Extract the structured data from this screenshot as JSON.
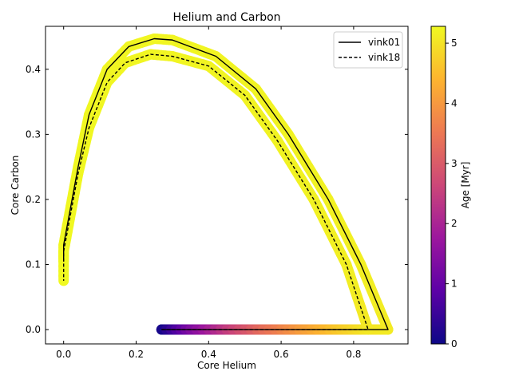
{
  "chart_data": {
    "type": "line",
    "title": "Helium and Carbon",
    "xlabel": "Core Helium",
    "ylabel": "Core Carbon",
    "xlim": [
      -0.05,
      0.95
    ],
    "ylim": [
      -0.022,
      0.466
    ],
    "xticks": [
      0.0,
      0.2,
      0.4,
      0.6,
      0.8
    ],
    "xtick_labels": [
      "0.0",
      "0.2",
      "0.4",
      "0.6",
      "0.8"
    ],
    "yticks": [
      0.0,
      0.1,
      0.2,
      0.3,
      0.4
    ],
    "ytick_labels": [
      "0.0",
      "0.1",
      "0.2",
      "0.3",
      "0.4"
    ],
    "legend_position": "top-right",
    "colorbar": {
      "label": "Age [Myr]",
      "range": [
        0,
        5.28
      ],
      "ticks": [
        0,
        1,
        2,
        3,
        4,
        5
      ],
      "tick_labels": [
        "0",
        "1",
        "2",
        "3",
        "4",
        "5"
      ],
      "colormap": "plasma",
      "colors": [
        "#0d0887",
        "#5c01a6",
        "#9c179e",
        "#cc4778",
        "#ed7953",
        "#fdb42f",
        "#f0f921"
      ]
    },
    "series": [
      {
        "name": "vink01",
        "line_style": "solid",
        "color": "#000000",
        "points": [
          {
            "x": 0.27,
            "y": 0.0,
            "age": 0.0
          },
          {
            "x": 0.35,
            "y": 0.0,
            "age": 1.3
          },
          {
            "x": 0.45,
            "y": 0.0,
            "age": 2.4
          },
          {
            "x": 0.55,
            "y": 0.0,
            "age": 3.3
          },
          {
            "x": 0.65,
            "y": 0.0,
            "age": 4.0
          },
          {
            "x": 0.75,
            "y": 0.0,
            "age": 4.6
          },
          {
            "x": 0.83,
            "y": 0.0,
            "age": 4.95
          },
          {
            "x": 0.895,
            "y": 0.0,
            "age": 5.1
          },
          {
            "x": 0.82,
            "y": 0.1,
            "age": 5.15
          },
          {
            "x": 0.73,
            "y": 0.2,
            "age": 5.18
          },
          {
            "x": 0.62,
            "y": 0.3,
            "age": 5.2
          },
          {
            "x": 0.53,
            "y": 0.37,
            "age": 5.21
          },
          {
            "x": 0.42,
            "y": 0.42,
            "age": 5.22
          },
          {
            "x": 0.3,
            "y": 0.445,
            "age": 5.23
          },
          {
            "x": 0.25,
            "y": 0.447,
            "age": 5.235
          },
          {
            "x": 0.18,
            "y": 0.435,
            "age": 5.24
          },
          {
            "x": 0.12,
            "y": 0.4,
            "age": 5.245
          },
          {
            "x": 0.07,
            "y": 0.33,
            "age": 5.25
          },
          {
            "x": 0.04,
            "y": 0.25,
            "age": 5.255
          },
          {
            "x": 0.02,
            "y": 0.19,
            "age": 5.26
          },
          {
            "x": 0.0,
            "y": 0.13,
            "age": 5.27
          },
          {
            "x": 0.0,
            "y": 0.105,
            "age": 5.28
          }
        ]
      },
      {
        "name": "vink18",
        "line_style": "dashed",
        "color": "#000000",
        "points": [
          {
            "x": 0.27,
            "y": 0.0,
            "age": 0.0
          },
          {
            "x": 0.35,
            "y": 0.0,
            "age": 1.3
          },
          {
            "x": 0.45,
            "y": 0.0,
            "age": 2.4
          },
          {
            "x": 0.55,
            "y": 0.0,
            "age": 3.3
          },
          {
            "x": 0.65,
            "y": 0.0,
            "age": 4.0
          },
          {
            "x": 0.75,
            "y": 0.0,
            "age": 4.6
          },
          {
            "x": 0.84,
            "y": 0.0,
            "age": 5.05
          },
          {
            "x": 0.78,
            "y": 0.1,
            "age": 5.15
          },
          {
            "x": 0.69,
            "y": 0.2,
            "age": 5.18
          },
          {
            "x": 0.59,
            "y": 0.29,
            "age": 5.2
          },
          {
            "x": 0.5,
            "y": 0.36,
            "age": 5.21
          },
          {
            "x": 0.4,
            "y": 0.405,
            "age": 5.22
          },
          {
            "x": 0.3,
            "y": 0.42,
            "age": 5.23
          },
          {
            "x": 0.24,
            "y": 0.423,
            "age": 5.235
          },
          {
            "x": 0.17,
            "y": 0.41,
            "age": 5.24
          },
          {
            "x": 0.12,
            "y": 0.38,
            "age": 5.245
          },
          {
            "x": 0.07,
            "y": 0.31,
            "age": 5.25
          },
          {
            "x": 0.04,
            "y": 0.24,
            "age": 5.255
          },
          {
            "x": 0.02,
            "y": 0.18,
            "age": 5.26
          },
          {
            "x": 0.0,
            "y": 0.12,
            "age": 5.27
          },
          {
            "x": 0.0,
            "y": 0.075,
            "age": 5.28
          }
        ]
      }
    ]
  }
}
